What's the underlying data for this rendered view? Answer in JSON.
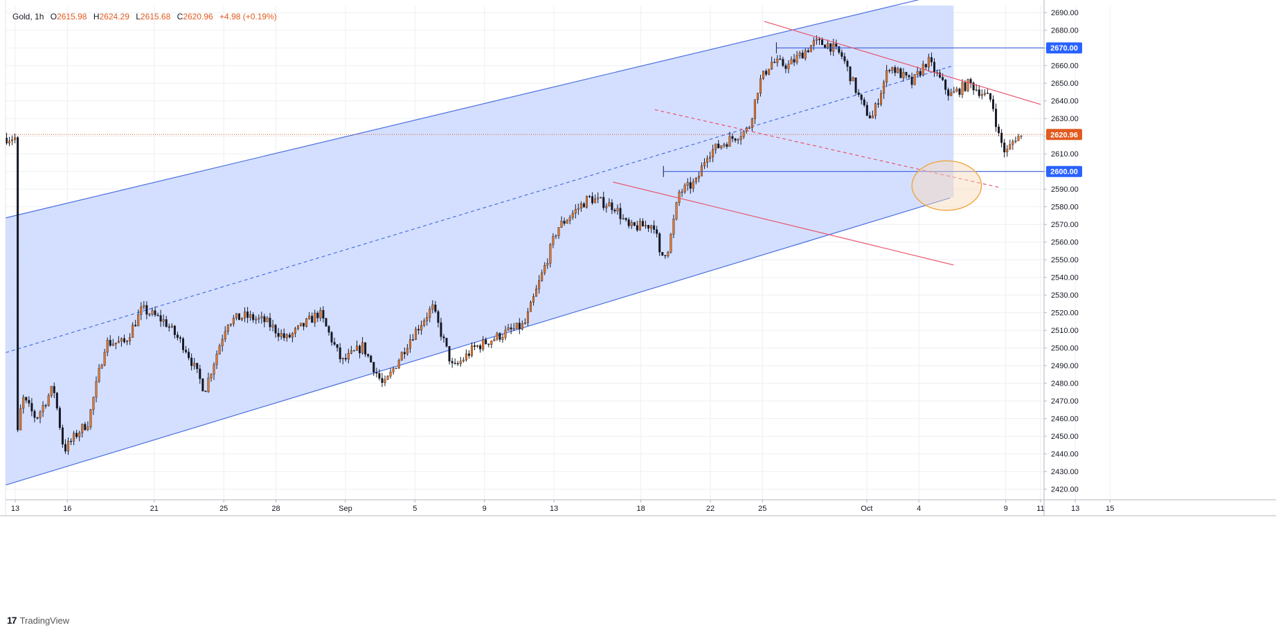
{
  "header": {
    "symbol": "Gold",
    "interval": "1h",
    "open_label": "O",
    "open": "2615.98",
    "high_label": "H",
    "high": "2624.29",
    "low_label": "L",
    "low": "2615.68",
    "close_label": "C",
    "close": "2620.96",
    "change": "+4.98 (+0.19%)"
  },
  "branding": {
    "logo": "17",
    "name": "TradingView"
  },
  "chart_data": {
    "type": "candlestick",
    "title": "",
    "xlabel": "",
    "ylabel": "",
    "ylim": [
      2414,
      2694
    ],
    "grid": true,
    "y_ticks": [
      2420,
      2430,
      2440,
      2450,
      2460,
      2470,
      2480,
      2490,
      2500,
      2510,
      2520,
      2530,
      2540,
      2550,
      2560,
      2570,
      2580,
      2590,
      2600,
      2610,
      2620,
      2630,
      2640,
      2650,
      2660,
      2670,
      2680,
      2690
    ],
    "x_ticks": [
      {
        "label": "13",
        "day": 0
      },
      {
        "label": "16",
        "day": 3
      },
      {
        "label": "21",
        "day": 8
      },
      {
        "label": "25",
        "day": 12
      },
      {
        "label": "28",
        "day": 15
      },
      {
        "label": "Sep",
        "day": 19
      },
      {
        "label": "5",
        "day": 23
      },
      {
        "label": "9",
        "day": 27
      },
      {
        "label": "13",
        "day": 31
      },
      {
        "label": "18",
        "day": 36
      },
      {
        "label": "22",
        "day": 40
      },
      {
        "label": "25",
        "day": 43
      },
      {
        "label": "Oct",
        "day": 49
      },
      {
        "label": "4",
        "day": 52
      },
      {
        "label": "9",
        "day": 57
      },
      {
        "label": "11",
        "day": 59
      },
      {
        "label": "13",
        "day": 61
      },
      {
        "label": "15",
        "day": 63
      }
    ],
    "price_path": [
      [
        0,
        2440
      ],
      [
        0.4,
        2472
      ],
      [
        1.2,
        2460
      ],
      [
        2.2,
        2478
      ],
      [
        2.8,
        2442
      ],
      [
        3.6,
        2452
      ],
      [
        4.2,
        2458
      ],
      [
        5.2,
        2503
      ],
      [
        6.3,
        2503
      ],
      [
        7.3,
        2522
      ],
      [
        8.6,
        2515
      ],
      [
        9.8,
        2500
      ],
      [
        10.9,
        2476
      ],
      [
        12.2,
        2515
      ],
      [
        13.2,
        2518
      ],
      [
        14.4,
        2515
      ],
      [
        15.6,
        2505
      ],
      [
        17.5,
        2520
      ],
      [
        18.8,
        2492
      ],
      [
        20,
        2501
      ],
      [
        21.2,
        2478
      ],
      [
        22.7,
        2505
      ],
      [
        24,
        2523
      ],
      [
        25.2,
        2488
      ],
      [
        26.4,
        2500
      ],
      [
        28.3,
        2509
      ],
      [
        29.3,
        2513
      ],
      [
        30.5,
        2547
      ],
      [
        31.2,
        2568
      ],
      [
        33,
        2585
      ],
      [
        34.5,
        2580
      ],
      [
        35.3,
        2568
      ],
      [
        36.8,
        2570
      ],
      [
        37.1,
        2551
      ],
      [
        37.6,
        2557
      ],
      [
        38.2,
        2588
      ],
      [
        39.2,
        2594
      ],
      [
        39.8,
        2610
      ],
      [
        41.1,
        2618
      ],
      [
        42.2,
        2624
      ],
      [
        42.8,
        2650
      ],
      [
        43.5,
        2662
      ],
      [
        44.5,
        2660
      ],
      [
        46,
        2673
      ],
      [
        46.8,
        2672
      ],
      [
        47.6,
        2665
      ],
      [
        48.8,
        2636
      ],
      [
        49.3,
        2630
      ],
      [
        50.3,
        2660
      ],
      [
        51.6,
        2650
      ],
      [
        52.5,
        2663
      ],
      [
        53.8,
        2643
      ],
      [
        54.9,
        2650
      ],
      [
        56.2,
        2640
      ],
      [
        56.6,
        2620
      ],
      [
        57,
        2610
      ],
      [
        57.6,
        2620
      ],
      [
        58,
        2619
      ]
    ],
    "annotations": {
      "last_price": 2620.96,
      "horizontal_levels": [
        {
          "label": "2670.00",
          "value": 2670.0,
          "start_day": 43.8
        },
        {
          "label": "2600.00",
          "value": 2600.0,
          "start_day": 37.3
        }
      ],
      "ascending_channel": {
        "upper": [
          [
            0,
            2575
          ],
          [
            54,
            2702
          ]
        ],
        "lower": [
          [
            0,
            2424
          ],
          [
            53.8,
            2585
          ]
        ],
        "median_dashed": [
          [
            0,
            2499
          ],
          [
            54,
            2660
          ]
        ],
        "shade_right_day": 54
      },
      "descending_channel": {
        "upper": [
          [
            43.1,
            2685
          ],
          [
            59,
            2638
          ]
        ],
        "median_dashed": [
          [
            36.8,
            2635
          ],
          [
            56.6,
            2591
          ]
        ],
        "lower": [
          [
            34.4,
            2594
          ],
          [
            54,
            2547
          ]
        ]
      },
      "target_ellipse": {
        "center_day": 53.6,
        "center_price": 2592,
        "radius_days": 2.0,
        "radius_price": 14
      }
    }
  },
  "colors": {
    "candle_up": "#e5762a",
    "candle_down": "#131722",
    "channel_fill": "#cfdcff",
    "channel_line": "#4a6fe0",
    "level_line": "#3b5bdb",
    "level_badge": "#2962ff",
    "descending_line": "#e8546a",
    "price_badge": "#e15a1f",
    "ellipse_stroke": "#f0a030",
    "ellipse_fill": "#f9d9b8",
    "grid": "#eceff3",
    "axis_text": "#131722"
  }
}
